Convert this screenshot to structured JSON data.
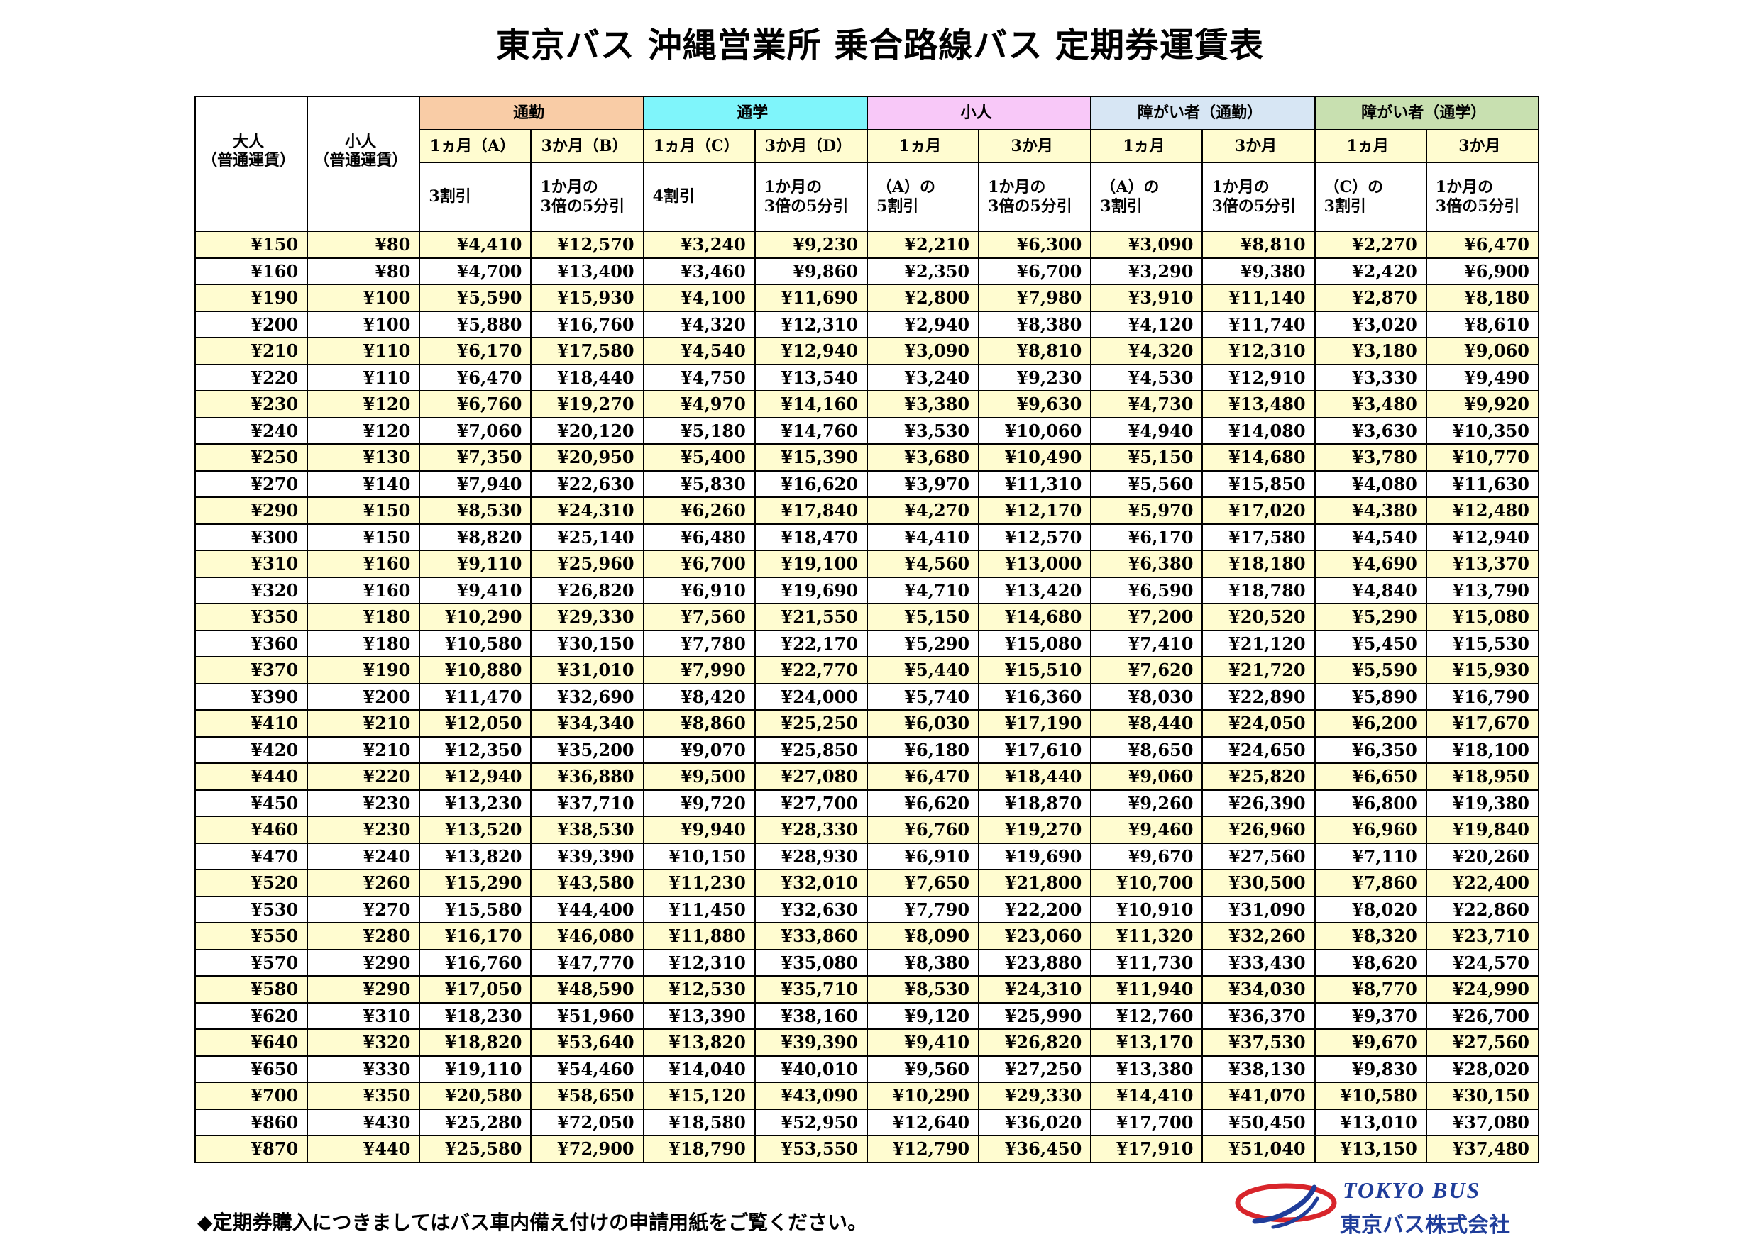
{
  "title": "東京バス 沖縄営業所 乗合路線バス 定期券運賃表",
  "header": {
    "adult": "大人\n（普通運賃）",
    "child": "小人\n（普通運賃）",
    "groups": [
      "通勤",
      "通学",
      "小人",
      "障がい者（通勤）",
      "障がい者（通学）"
    ],
    "periods": [
      "1ヵ月（A）",
      "3か月（B）",
      "1ヵ月（C）",
      "3か月（D）",
      "1ヵ月",
      "3か月",
      "1ヵ月",
      "3か月",
      "1ヵ月",
      "3か月"
    ],
    "notes": [
      "3割引",
      "1か月の\n3倍の5分引",
      "4割引",
      "1か月の\n3倍の5分引",
      "（A）の\n5割引",
      "1か月の\n3倍の5分引",
      "（A）の\n3割引",
      "1か月の\n3倍の5分引",
      "（C）の\n3割引",
      "1か月の\n3倍の5分引"
    ]
  },
  "rows": [
    [
      "¥150",
      "¥80",
      "¥4,410",
      "¥12,570",
      "¥3,240",
      "¥9,230",
      "¥2,210",
      "¥6,300",
      "¥3,090",
      "¥8,810",
      "¥2,270",
      "¥6,470"
    ],
    [
      "¥160",
      "¥80",
      "¥4,700",
      "¥13,400",
      "¥3,460",
      "¥9,860",
      "¥2,350",
      "¥6,700",
      "¥3,290",
      "¥9,380",
      "¥2,420",
      "¥6,900"
    ],
    [
      "¥190",
      "¥100",
      "¥5,590",
      "¥15,930",
      "¥4,100",
      "¥11,690",
      "¥2,800",
      "¥7,980",
      "¥3,910",
      "¥11,140",
      "¥2,870",
      "¥8,180"
    ],
    [
      "¥200",
      "¥100",
      "¥5,880",
      "¥16,760",
      "¥4,320",
      "¥12,310",
      "¥2,940",
      "¥8,380",
      "¥4,120",
      "¥11,740",
      "¥3,020",
      "¥8,610"
    ],
    [
      "¥210",
      "¥110",
      "¥6,170",
      "¥17,580",
      "¥4,540",
      "¥12,940",
      "¥3,090",
      "¥8,810",
      "¥4,320",
      "¥12,310",
      "¥3,180",
      "¥9,060"
    ],
    [
      "¥220",
      "¥110",
      "¥6,470",
      "¥18,440",
      "¥4,750",
      "¥13,540",
      "¥3,240",
      "¥9,230",
      "¥4,530",
      "¥12,910",
      "¥3,330",
      "¥9,490"
    ],
    [
      "¥230",
      "¥120",
      "¥6,760",
      "¥19,270",
      "¥4,970",
      "¥14,160",
      "¥3,380",
      "¥9,630",
      "¥4,730",
      "¥13,480",
      "¥3,480",
      "¥9,920"
    ],
    [
      "¥240",
      "¥120",
      "¥7,060",
      "¥20,120",
      "¥5,180",
      "¥14,760",
      "¥3,530",
      "¥10,060",
      "¥4,940",
      "¥14,080",
      "¥3,630",
      "¥10,350"
    ],
    [
      "¥250",
      "¥130",
      "¥7,350",
      "¥20,950",
      "¥5,400",
      "¥15,390",
      "¥3,680",
      "¥10,490",
      "¥5,150",
      "¥14,680",
      "¥3,780",
      "¥10,770"
    ],
    [
      "¥270",
      "¥140",
      "¥7,940",
      "¥22,630",
      "¥5,830",
      "¥16,620",
      "¥3,970",
      "¥11,310",
      "¥5,560",
      "¥15,850",
      "¥4,080",
      "¥11,630"
    ],
    [
      "¥290",
      "¥150",
      "¥8,530",
      "¥24,310",
      "¥6,260",
      "¥17,840",
      "¥4,270",
      "¥12,170",
      "¥5,970",
      "¥17,020",
      "¥4,380",
      "¥12,480"
    ],
    [
      "¥300",
      "¥150",
      "¥8,820",
      "¥25,140",
      "¥6,480",
      "¥18,470",
      "¥4,410",
      "¥12,570",
      "¥6,170",
      "¥17,580",
      "¥4,540",
      "¥12,940"
    ],
    [
      "¥310",
      "¥160",
      "¥9,110",
      "¥25,960",
      "¥6,700",
      "¥19,100",
      "¥4,560",
      "¥13,000",
      "¥6,380",
      "¥18,180",
      "¥4,690",
      "¥13,370"
    ],
    [
      "¥320",
      "¥160",
      "¥9,410",
      "¥26,820",
      "¥6,910",
      "¥19,690",
      "¥4,710",
      "¥13,420",
      "¥6,590",
      "¥18,780",
      "¥4,840",
      "¥13,790"
    ],
    [
      "¥350",
      "¥180",
      "¥10,290",
      "¥29,330",
      "¥7,560",
      "¥21,550",
      "¥5,150",
      "¥14,680",
      "¥7,200",
      "¥20,520",
      "¥5,290",
      "¥15,080"
    ],
    [
      "¥360",
      "¥180",
      "¥10,580",
      "¥30,150",
      "¥7,780",
      "¥22,170",
      "¥5,290",
      "¥15,080",
      "¥7,410",
      "¥21,120",
      "¥5,450",
      "¥15,530"
    ],
    [
      "¥370",
      "¥190",
      "¥10,880",
      "¥31,010",
      "¥7,990",
      "¥22,770",
      "¥5,440",
      "¥15,510",
      "¥7,620",
      "¥21,720",
      "¥5,590",
      "¥15,930"
    ],
    [
      "¥390",
      "¥200",
      "¥11,470",
      "¥32,690",
      "¥8,420",
      "¥24,000",
      "¥5,740",
      "¥16,360",
      "¥8,030",
      "¥22,890",
      "¥5,890",
      "¥16,790"
    ],
    [
      "¥410",
      "¥210",
      "¥12,050",
      "¥34,340",
      "¥8,860",
      "¥25,250",
      "¥6,030",
      "¥17,190",
      "¥8,440",
      "¥24,050",
      "¥6,200",
      "¥17,670"
    ],
    [
      "¥420",
      "¥210",
      "¥12,350",
      "¥35,200",
      "¥9,070",
      "¥25,850",
      "¥6,180",
      "¥17,610",
      "¥8,650",
      "¥24,650",
      "¥6,350",
      "¥18,100"
    ],
    [
      "¥440",
      "¥220",
      "¥12,940",
      "¥36,880",
      "¥9,500",
      "¥27,080",
      "¥6,470",
      "¥18,440",
      "¥9,060",
      "¥25,820",
      "¥6,650",
      "¥18,950"
    ],
    [
      "¥450",
      "¥230",
      "¥13,230",
      "¥37,710",
      "¥9,720",
      "¥27,700",
      "¥6,620",
      "¥18,870",
      "¥9,260",
      "¥26,390",
      "¥6,800",
      "¥19,380"
    ],
    [
      "¥460",
      "¥230",
      "¥13,520",
      "¥38,530",
      "¥9,940",
      "¥28,330",
      "¥6,760",
      "¥19,270",
      "¥9,460",
      "¥26,960",
      "¥6,960",
      "¥19,840"
    ],
    [
      "¥470",
      "¥240",
      "¥13,820",
      "¥39,390",
      "¥10,150",
      "¥28,930",
      "¥6,910",
      "¥19,690",
      "¥9,670",
      "¥27,560",
      "¥7,110",
      "¥20,260"
    ],
    [
      "¥520",
      "¥260",
      "¥15,290",
      "¥43,580",
      "¥11,230",
      "¥32,010",
      "¥7,650",
      "¥21,800",
      "¥10,700",
      "¥30,500",
      "¥7,860",
      "¥22,400"
    ],
    [
      "¥530",
      "¥270",
      "¥15,580",
      "¥44,400",
      "¥11,450",
      "¥32,630",
      "¥7,790",
      "¥22,200",
      "¥10,910",
      "¥31,090",
      "¥8,020",
      "¥22,860"
    ],
    [
      "¥550",
      "¥280",
      "¥16,170",
      "¥46,080",
      "¥11,880",
      "¥33,860",
      "¥8,090",
      "¥23,060",
      "¥11,320",
      "¥32,260",
      "¥8,320",
      "¥23,710"
    ],
    [
      "¥570",
      "¥290",
      "¥16,760",
      "¥47,770",
      "¥12,310",
      "¥35,080",
      "¥8,380",
      "¥23,880",
      "¥11,730",
      "¥33,430",
      "¥8,620",
      "¥24,570"
    ],
    [
      "¥580",
      "¥290",
      "¥17,050",
      "¥48,590",
      "¥12,530",
      "¥35,710",
      "¥8,530",
      "¥24,310",
      "¥11,940",
      "¥34,030",
      "¥8,770",
      "¥24,990"
    ],
    [
      "¥620",
      "¥310",
      "¥18,230",
      "¥51,960",
      "¥13,390",
      "¥38,160",
      "¥9,120",
      "¥25,990",
      "¥12,760",
      "¥36,370",
      "¥9,370",
      "¥26,700"
    ],
    [
      "¥640",
      "¥320",
      "¥18,820",
      "¥53,640",
      "¥13,820",
      "¥39,390",
      "¥9,410",
      "¥26,820",
      "¥13,170",
      "¥37,530",
      "¥9,670",
      "¥27,560"
    ],
    [
      "¥650",
      "¥330",
      "¥19,110",
      "¥54,460",
      "¥14,040",
      "¥40,010",
      "¥9,560",
      "¥27,250",
      "¥13,380",
      "¥38,130",
      "¥9,830",
      "¥28,020"
    ],
    [
      "¥700",
      "¥350",
      "¥20,580",
      "¥58,650",
      "¥15,120",
      "¥43,090",
      "¥10,290",
      "¥29,330",
      "¥14,410",
      "¥41,070",
      "¥10,580",
      "¥30,150"
    ],
    [
      "¥860",
      "¥430",
      "¥25,280",
      "¥72,050",
      "¥18,580",
      "¥52,950",
      "¥12,640",
      "¥36,020",
      "¥17,700",
      "¥50,450",
      "¥13,010",
      "¥37,080"
    ],
    [
      "¥870",
      "¥440",
      "¥25,580",
      "¥72,900",
      "¥18,790",
      "¥53,550",
      "¥12,790",
      "¥36,450",
      "¥17,910",
      "¥51,040",
      "¥13,150",
      "¥37,480"
    ]
  ],
  "footer_note": "◆定期券購入につきましてはバス車内備え付けの申請用紙をご覧ください。",
  "logo": {
    "en": "TOKYO BUS",
    "ja": "東京バス株式会社"
  },
  "colors": {
    "row_highlight": "#fffcd0",
    "group_commute": "#f9cca6",
    "group_school": "#7ff5fb",
    "group_child": "#f8c8f8",
    "group_disabled_commute": "#d7e6f4",
    "group_disabled_school": "#c8e0b0",
    "logo_blue": "#1f3d9a",
    "logo_red": "#d8252b"
  }
}
